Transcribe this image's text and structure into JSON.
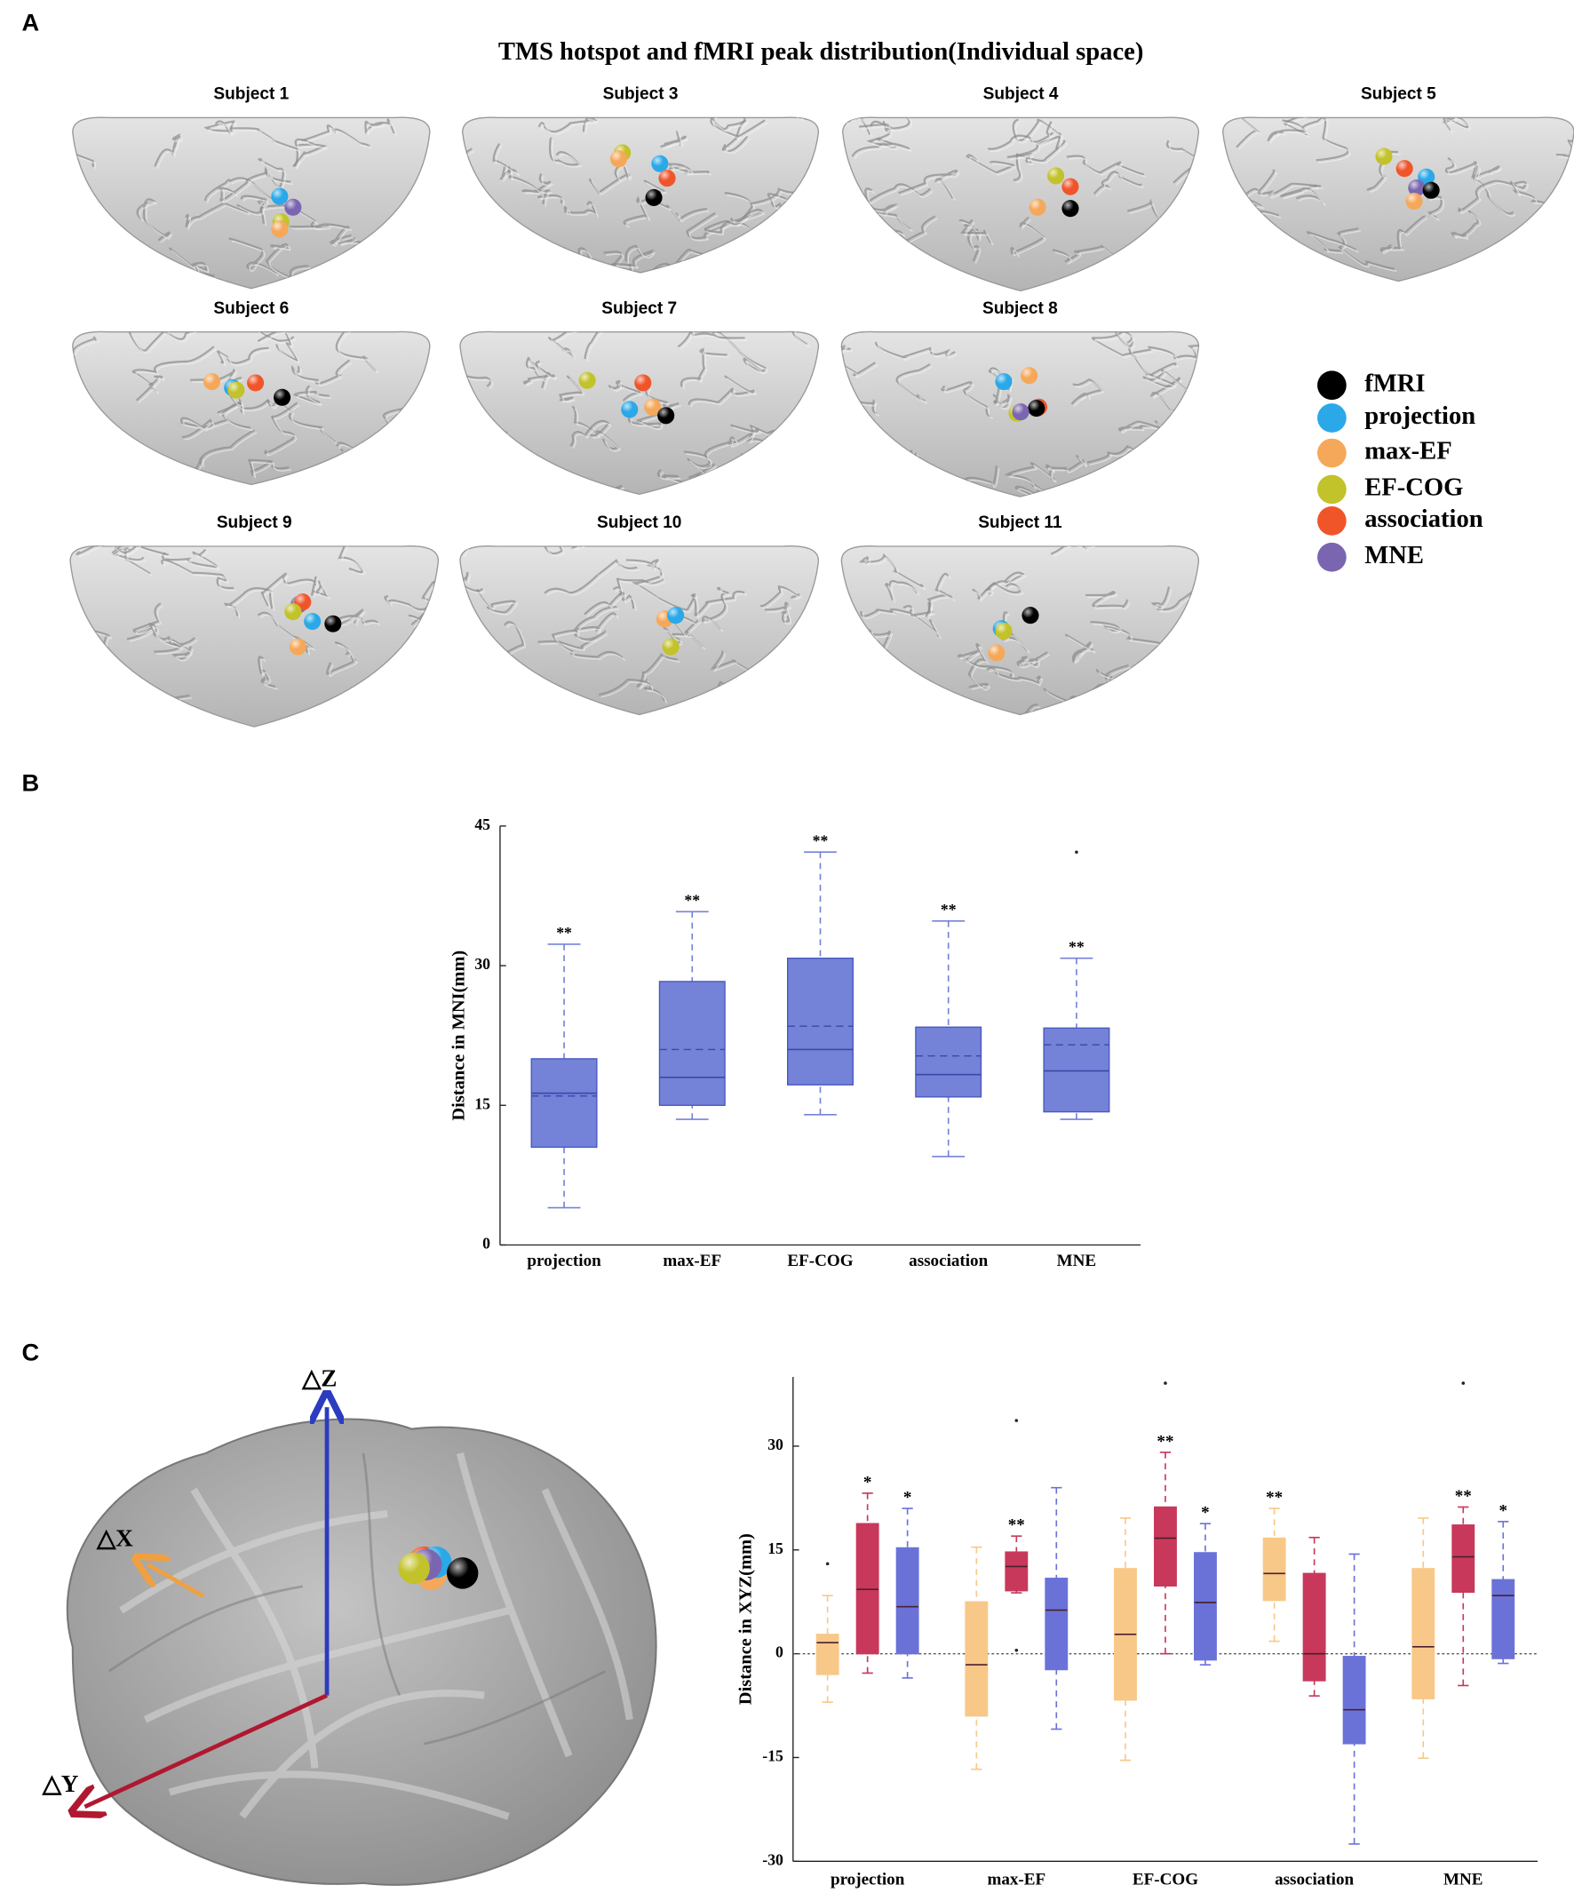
{
  "panel_labels": [
    "A",
    "B",
    "C"
  ],
  "panel_a": {
    "title": "TMS hotspot and fMRI peak distribution(Individual space)",
    "subjects": [
      "Subject 1",
      "Subject 3",
      "Subject 4",
      "Subject 5",
      "Subject 6",
      "Subject 7",
      "Subject 8",
      "Subject 9",
      "Subject 10",
      "Subject 11"
    ],
    "legend": [
      {
        "name": "fMRI",
        "color": "#000000"
      },
      {
        "name": "projection",
        "color": "#2aa8e8"
      },
      {
        "name": "max-EF",
        "color": "#f5a85a"
      },
      {
        "name": "EF-COG",
        "color": "#c2c22a"
      },
      {
        "name": "association",
        "color": "#f0552a"
      },
      {
        "name": "MNE",
        "color": "#7a66b0"
      }
    ]
  },
  "panel_c_axes": [
    "△Z",
    "△X",
    "△Y"
  ],
  "chart_data": [
    {
      "type": "box",
      "ylabel": "Distance in MNI(mm)",
      "categories": [
        "projection",
        "max-EF",
        "EF-COG",
        "association",
        "MNE"
      ],
      "color": "#7482d8",
      "ylim": [
        0,
        45
      ],
      "yticks": [
        0,
        15,
        30,
        45
      ],
      "values": [
        {
          "low": 4,
          "q1": 10.5,
          "median": 16.3,
          "mean": 16,
          "q3": 20,
          "high": 32.3
        },
        {
          "low": 13.5,
          "q1": 15,
          "median": 18,
          "mean": 21,
          "q3": 28.3,
          "high": 35.8
        },
        {
          "low": 14,
          "q1": 17.2,
          "median": 21,
          "mean": 23.5,
          "q3": 30.8,
          "high": 42.2
        },
        {
          "low": 9.5,
          "q1": 15.9,
          "median": 18.3,
          "mean": 20.3,
          "q3": 23.4,
          "high": 34.8
        },
        {
          "low": 13.5,
          "q1": 14.3,
          "median": 18.7,
          "mean": 21.5,
          "q3": 23.3,
          "high": 30.8,
          "outliers": [
            42.2
          ]
        }
      ],
      "annotations": [
        "**",
        "**",
        "**",
        "**",
        "**"
      ]
    },
    {
      "type": "grouped_box",
      "ylabel": "Distance in XYZ(mm)",
      "categories": [
        "projection",
        "max-EF",
        "EF-COG",
        "association",
        "MNE"
      ],
      "ylim": [
        -30,
        40
      ],
      "yticks": [
        -30,
        -15,
        0,
        15,
        30
      ],
      "reference_line": 0,
      "series": [
        {
          "color": "#f8c888",
          "values": [
            {
              "low": -7,
              "q1": -3,
              "median": 1.6,
              "q3": 2.8,
              "high": 8.4,
              "outliers": [
                13
              ]
            },
            {
              "low": -16.7,
              "q1": -9,
              "median": -1.6,
              "q3": 7.5,
              "high": 15.4
            },
            {
              "low": -15.4,
              "q1": -6.7,
              "median": 2.8,
              "q3": 12.3,
              "high": 19.6
            },
            {
              "low": 1.8,
              "q1": 7.7,
              "median": 11.6,
              "q3": 16.7,
              "high": 21
            },
            {
              "low": -15.1,
              "q1": -6.5,
              "median": 1,
              "q3": 12.3,
              "high": 19.6
            }
          ],
          "annotations": [
            null,
            null,
            null,
            "**",
            null
          ]
        },
        {
          "color": "#c8385a",
          "values": [
            {
              "low": -2.8,
              "q1": 0,
              "median": 9.3,
              "q3": 18.8,
              "high": 23.2
            },
            {
              "low": 8.8,
              "q1": 9.1,
              "median": 12.6,
              "q3": 14.7,
              "high": 17,
              "outliers": [
                33.7,
                0.5
              ]
            },
            {
              "low": 0,
              "q1": 9.8,
              "median": 16.7,
              "q3": 21.2,
              "high": 29.1,
              "outliers": [
                39.1
              ]
            },
            {
              "low": -6.1,
              "q1": -3.9,
              "median": 0,
              "q3": 11.6,
              "high": 16.8
            },
            {
              "low": -4.6,
              "q1": 8.9,
              "median": 14,
              "q3": 18.6,
              "high": 21.2,
              "outliers": [
                39.1
              ]
            }
          ],
          "annotations": [
            "*",
            "**",
            "**",
            null,
            "**"
          ]
        },
        {
          "color": "#6a72d8",
          "values": [
            {
              "low": -3.5,
              "q1": 0,
              "median": 6.8,
              "q3": 15.3,
              "high": 21
            },
            {
              "low": -10.9,
              "q1": -2.3,
              "median": 6.3,
              "q3": 10.9,
              "high": 24
            },
            {
              "low": -1.6,
              "q1": -0.9,
              "median": 7.4,
              "q3": 14.6,
              "high": 18.8
            },
            {
              "low": -27.5,
              "q1": -13,
              "median": -8.1,
              "q3": -0.4,
              "high": 14.4
            },
            {
              "low": -1.4,
              "q1": -0.7,
              "median": 8.4,
              "q3": 10.7,
              "high": 19.1
            }
          ],
          "annotations": [
            "*",
            null,
            "*",
            null,
            "*"
          ]
        }
      ]
    }
  ]
}
